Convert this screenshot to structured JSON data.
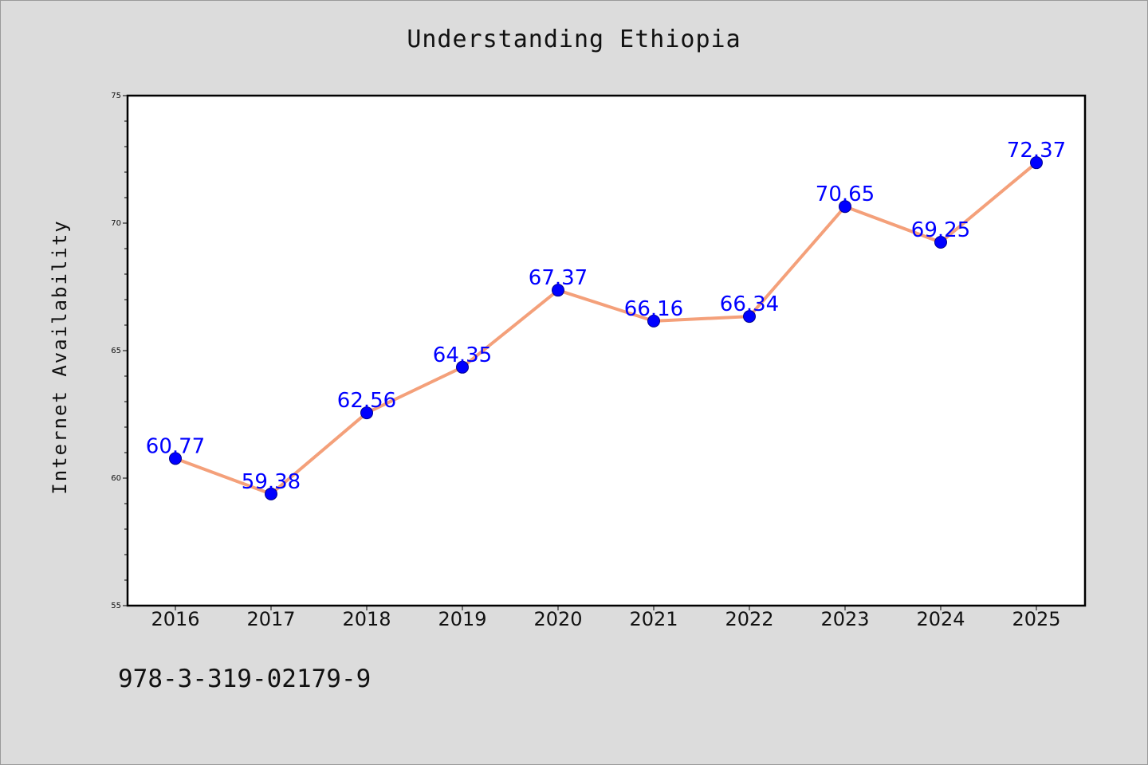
{
  "title": "Understanding Ethiopia",
  "isbn": "978-3-319-02179-9",
  "chart_data": {
    "type": "line",
    "title": "Understanding Ethiopia",
    "xlabel": "",
    "ylabel": "Internet Availability",
    "categories": [
      "2016",
      "2017",
      "2018",
      "2019",
      "2020",
      "2021",
      "2022",
      "2023",
      "2024",
      "2025"
    ],
    "series": [
      {
        "values": [
          60.77,
          59.38,
          62.56,
          64.35,
          67.37,
          66.16,
          66.34,
          70.65,
          69.25,
          72.37
        ],
        "data_labels": [
          "60.77",
          "59.38",
          "62.56",
          "64.35",
          "67.37",
          "66.16",
          "66.34",
          "70.65",
          "69.25",
          "72.37"
        ],
        "line_color": "#f4a07a",
        "marker_color": "#0000ff"
      }
    ],
    "ylim": [
      55,
      75
    ],
    "yticks": [
      "55",
      "60",
      "65",
      "70",
      "75"
    ],
    "grid": false,
    "legend": "none",
    "background_color": "#dcdcdc",
    "plot_background_color": "#ffffff"
  }
}
